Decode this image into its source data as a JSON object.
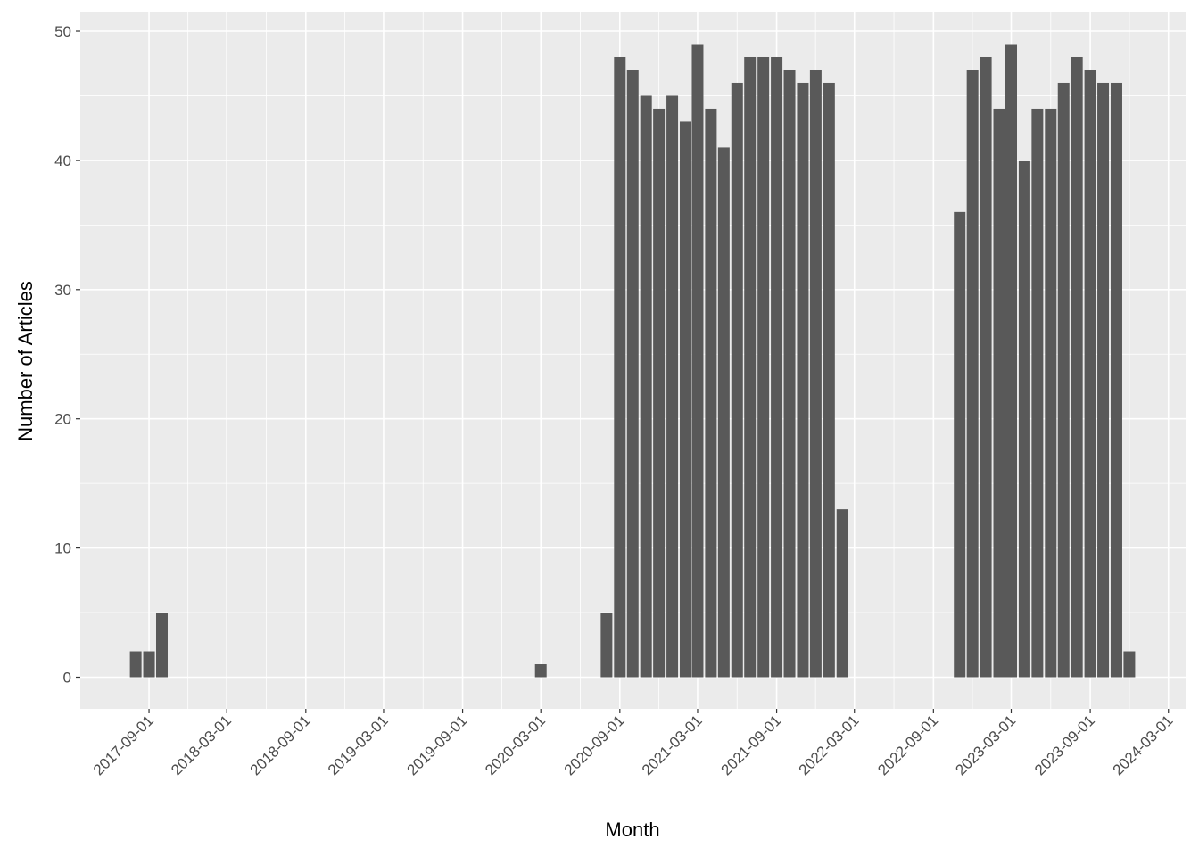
{
  "chart_data": {
    "type": "bar",
    "xlabel": "Month",
    "ylabel": "Number of Articles",
    "x": [
      "2017-08-01",
      "2017-09-01",
      "2017-10-01",
      "2020-03-01",
      "2020-08-01",
      "2020-09-01",
      "2020-10-01",
      "2020-11-01",
      "2020-12-01",
      "2021-01-01",
      "2021-02-01",
      "2021-03-01",
      "2021-04-01",
      "2021-05-01",
      "2021-06-01",
      "2021-07-01",
      "2021-08-01",
      "2021-09-01",
      "2021-10-01",
      "2021-11-01",
      "2021-12-01",
      "2022-01-01",
      "2022-02-01",
      "2022-11-01",
      "2022-12-01",
      "2023-01-01",
      "2023-02-01",
      "2023-03-01",
      "2023-04-01",
      "2023-05-01",
      "2023-06-01",
      "2023-07-01",
      "2023-08-01",
      "2023-09-01",
      "2023-10-01",
      "2023-11-01",
      "2023-12-01"
    ],
    "values": [
      2,
      2,
      5,
      1,
      5,
      48,
      47,
      45,
      44,
      45,
      43,
      49,
      44,
      41,
      46,
      48,
      48,
      48,
      47,
      46,
      47,
      46,
      13,
      36,
      47,
      48,
      44,
      49,
      40,
      44,
      44,
      46,
      48,
      47,
      46,
      46,
      2
    ],
    "color": "#595959",
    "xlim": [
      "2017-03-25",
      "2024-04-10"
    ],
    "xticks": [
      "2017-09-01",
      "2018-03-01",
      "2018-09-01",
      "2019-03-01",
      "2019-09-01",
      "2020-03-01",
      "2020-09-01",
      "2021-03-01",
      "2021-09-01",
      "2022-03-01",
      "2022-09-01",
      "2023-03-01",
      "2023-09-01",
      "2024-03-01"
    ],
    "ylim": [
      -2.45,
      51.45
    ],
    "yticks": [
      0,
      10,
      20,
      30,
      40,
      50
    ],
    "grid": true
  }
}
